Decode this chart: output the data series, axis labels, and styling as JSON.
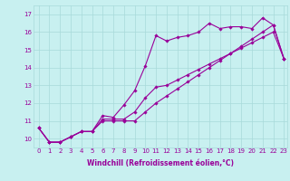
{
  "xlabel": "Windchill (Refroidissement éolien,°C)",
  "bg_color": "#c8f0f0",
  "line_color": "#990099",
  "xlim": [
    -0.5,
    23.3
  ],
  "ylim": [
    9.5,
    17.5
  ],
  "xticks": [
    0,
    1,
    2,
    3,
    4,
    5,
    6,
    7,
    8,
    9,
    10,
    11,
    12,
    13,
    14,
    15,
    16,
    17,
    18,
    19,
    20,
    21,
    22,
    23
  ],
  "yticks": [
    10,
    11,
    12,
    13,
    14,
    15,
    16,
    17
  ],
  "series1_x": [
    0,
    1,
    2,
    3,
    4,
    5,
    6,
    7,
    8,
    9,
    10,
    11,
    12,
    13,
    14,
    15,
    16,
    17,
    18,
    19,
    20,
    21,
    22,
    23
  ],
  "series1_y": [
    10.6,
    9.8,
    9.8,
    10.1,
    10.4,
    10.4,
    11.3,
    11.2,
    11.9,
    12.7,
    14.1,
    15.8,
    15.5,
    15.7,
    15.8,
    16.0,
    16.5,
    16.2,
    16.3,
    16.3,
    16.2,
    16.8,
    16.4,
    14.5
  ],
  "series2_x": [
    0,
    1,
    2,
    3,
    4,
    5,
    6,
    7,
    8,
    9,
    10,
    11,
    12,
    13,
    14,
    15,
    16,
    17,
    18,
    19,
    20,
    21,
    22,
    23
  ],
  "series2_y": [
    10.6,
    9.8,
    9.8,
    10.1,
    10.4,
    10.4,
    11.1,
    11.1,
    11.1,
    11.5,
    12.3,
    12.9,
    13.0,
    13.3,
    13.6,
    13.9,
    14.2,
    14.5,
    14.8,
    15.1,
    15.4,
    15.7,
    16.0,
    14.5
  ],
  "series3_x": [
    0,
    1,
    2,
    3,
    4,
    5,
    6,
    7,
    8,
    9,
    10,
    11,
    12,
    13,
    14,
    15,
    16,
    17,
    18,
    19,
    20,
    21,
    22,
    23
  ],
  "series3_y": [
    10.6,
    9.8,
    9.8,
    10.1,
    10.4,
    10.4,
    11.0,
    11.0,
    11.0,
    11.0,
    11.5,
    12.0,
    12.4,
    12.8,
    13.2,
    13.6,
    14.0,
    14.4,
    14.8,
    15.2,
    15.6,
    16.0,
    16.4,
    14.5
  ],
  "tick_fontsize": 5.0,
  "xlabel_fontsize": 5.5,
  "marker_size": 1.8,
  "line_width": 0.8,
  "grid_color": "#a8dada",
  "spine_color": "#a8dada"
}
